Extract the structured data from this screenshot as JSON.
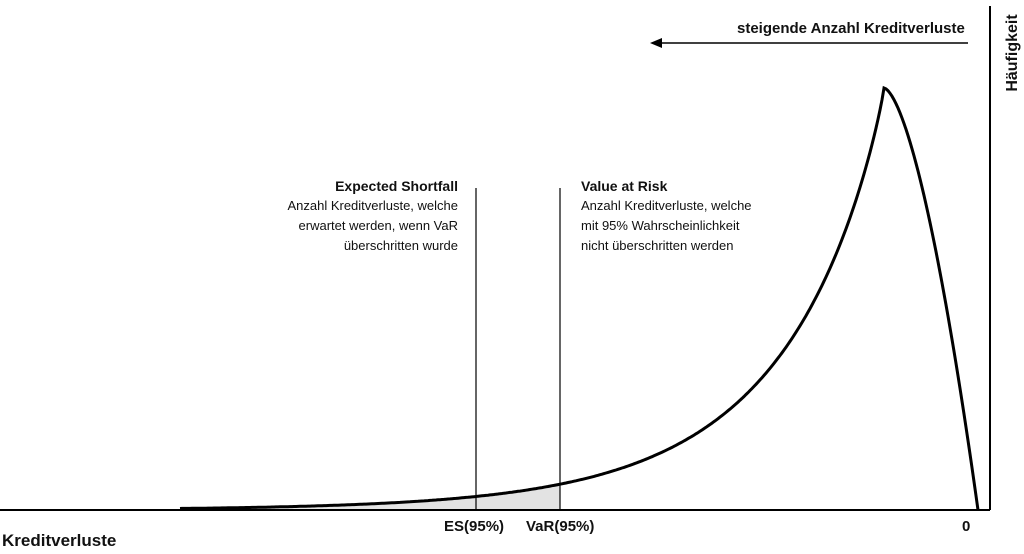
{
  "axis": {
    "x_label": "Kreditverluste",
    "y_label": "Häufigkeit",
    "direction_label": "steigende Anzahl Kreditverluste",
    "tick_es": "ES(95%)",
    "tick_var": "VaR(95%)",
    "tick_zero": "0"
  },
  "expected_shortfall": {
    "title": "Expected Shortfall",
    "lines": [
      "Anzahl Kreditverluste, welche",
      "erwartet werden, wenn VaR",
      "überschritten wurde"
    ]
  },
  "value_at_risk": {
    "title": "Value at Risk",
    "lines": [
      "Anzahl Kreditverluste, welche",
      "mit 95% Wahrscheinlichkeit",
      "nicht überschritten werden"
    ]
  },
  "colors": {
    "tail_fill": "#e3e3e3",
    "curve": "#000000"
  }
}
